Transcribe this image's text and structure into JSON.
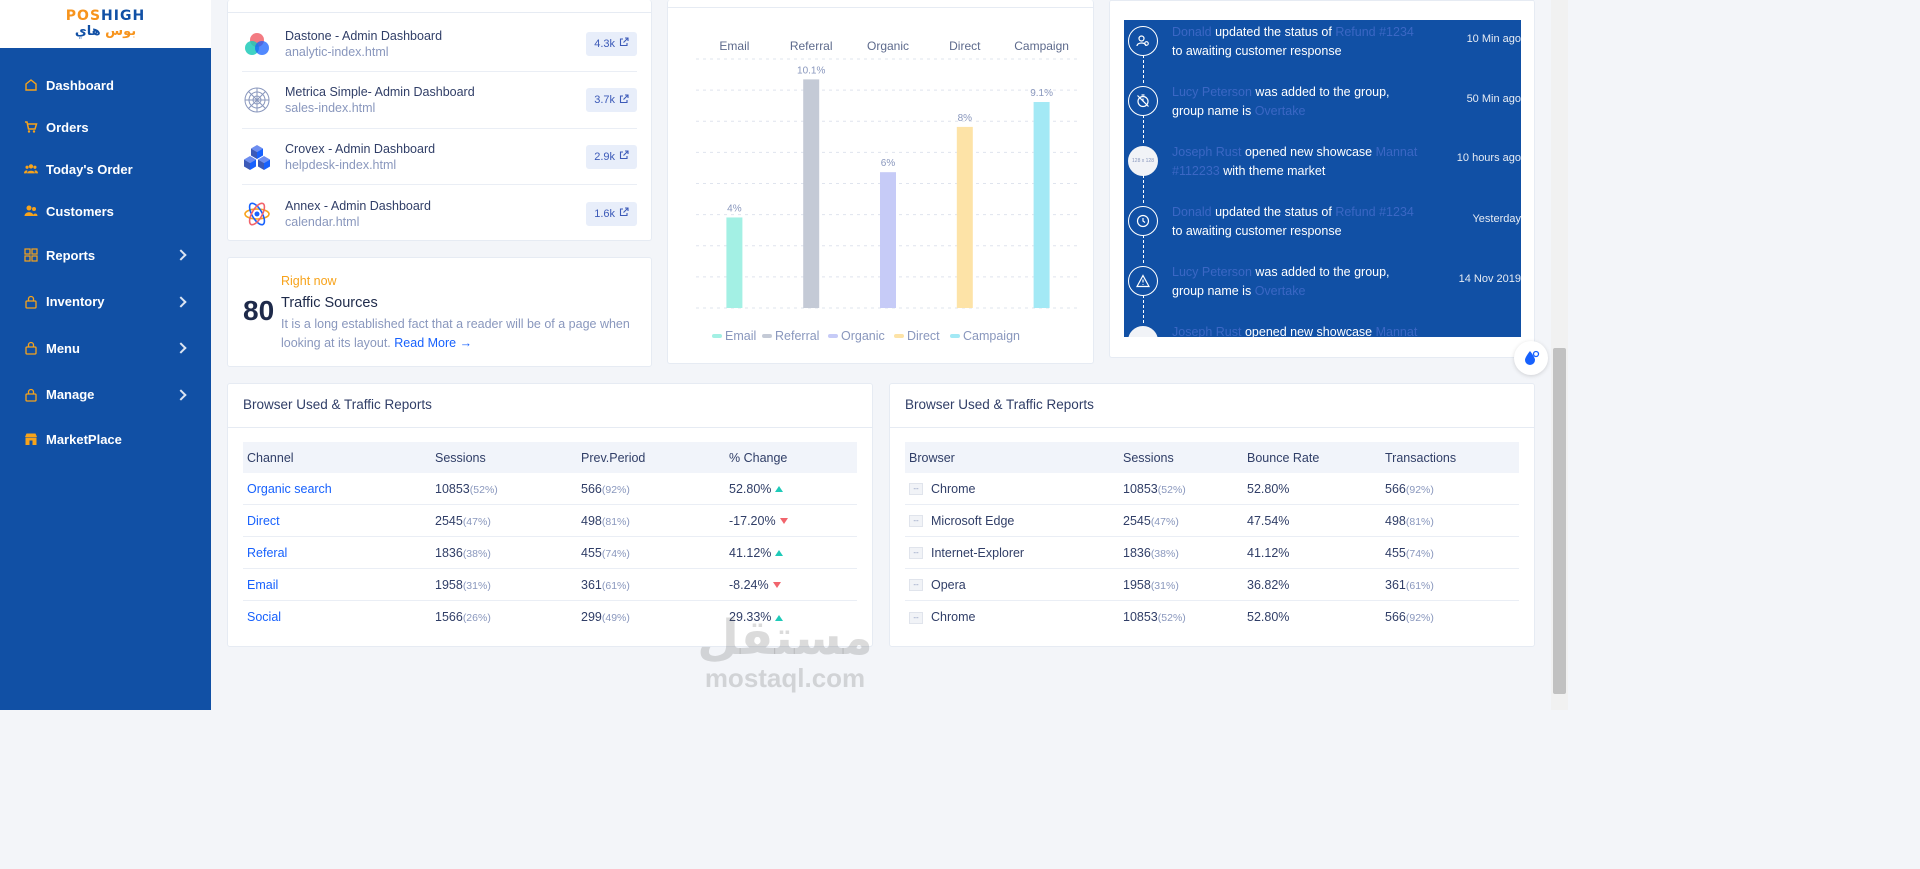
{
  "brand": {
    "logo_en_a": "POS",
    "logo_en_b": "HIGH",
    "logo_ar_a": "بوس ",
    "logo_ar_b": "هاي"
  },
  "sidebar": {
    "items": [
      {
        "label": "Dashboard",
        "icon": "home-icon",
        "chevron": false
      },
      {
        "label": "Orders",
        "icon": "cart-icon",
        "chevron": false
      },
      {
        "label": "Today's Order",
        "icon": "users-icon",
        "chevron": false
      },
      {
        "label": "Customers",
        "icon": "user-group-icon",
        "chevron": false
      },
      {
        "label": "Reports",
        "icon": "grid-icon",
        "chevron": true
      },
      {
        "label": "Inventory",
        "icon": "lock-icon",
        "chevron": true
      },
      {
        "label": "Menu",
        "icon": "lock-icon",
        "chevron": true
      },
      {
        "label": "Manage",
        "icon": "lock-icon",
        "chevron": true
      },
      {
        "label": "MarketPlace",
        "icon": "shop-icon",
        "chevron": false
      }
    ]
  },
  "projects": [
    {
      "name": "Dastone - Admin Dashboard",
      "file": "analytic-index.html",
      "count": "4.3k"
    },
    {
      "name": "Metrica Simple- Admin Dashboard",
      "file": "sales-index.html",
      "count": "3.7k"
    },
    {
      "name": "Crovex - Admin Dashboard",
      "file": "helpdesk-index.html",
      "count": "2.9k"
    },
    {
      "name": "Annex - Admin Dashboard",
      "file": "calendar.html",
      "count": "1.6k"
    }
  ],
  "traffic_card": {
    "number": "80",
    "kicker": "Right now",
    "title": "Traffic Sources",
    "description": "It is a long established fact that a reader will be of a page when looking at its layout.",
    "link": "Read More →"
  },
  "chart_data": {
    "type": "bar",
    "categories": [
      "Email",
      "Referral",
      "Organic",
      "Direct",
      "Campaign"
    ],
    "values": [
      4,
      10.1,
      6,
      8,
      9.1
    ],
    "data_labels": [
      "4%",
      "10.1%",
      "6%",
      "8%",
      "9.1%"
    ],
    "colors": [
      "#a3f0e4",
      "#c4cad6",
      "#c6cbf7",
      "#fde3a7",
      "#a3e9f5"
    ],
    "legend": [
      "Email",
      "Referral",
      "Organic",
      "Direct",
      "Campaign"
    ],
    "legend_position": "bottom",
    "xaxis_position": "top",
    "ylim": [
      0,
      11
    ],
    "grid": true
  },
  "activity": [
    {
      "name": "Donald",
      "action": " updated the status of ",
      "target": "Refund #1234",
      "rest": " to awaiting customer response",
      "time": "10 Min ago",
      "icon": "user-search-icon"
    },
    {
      "name": "Lucy Peterson",
      "action": " was added to the group, group name is ",
      "target": "Overtake",
      "rest": "",
      "time": "50 Min ago",
      "icon": "timer-off-icon"
    },
    {
      "name": "Joseph Rust",
      "action": " opened new showcase ",
      "target": "Mannat #112233",
      "rest": " with theme market",
      "time": "10 hours ago",
      "icon": "avatar-image",
      "img_text": "128 x 128"
    },
    {
      "name": "Donald",
      "action": " updated the status of ",
      "target": "Refund #1234",
      "rest": " to awaiting customer response",
      "time": "Yesterday",
      "icon": "clock-icon"
    },
    {
      "name": "Lucy Peterson",
      "action": " was added to the group, group name is ",
      "target": "Overtake",
      "rest": "",
      "time": "14 Nov 2019",
      "icon": "alert-triangle-icon"
    },
    {
      "name": "Joseph Rust",
      "action": " opened new showcase ",
      "target": "Mannat",
      "rest": "",
      "time": "",
      "icon": "avatar-image",
      "img_text": ""
    }
  ],
  "channel_table": {
    "title": "Browser Used & Traffic Reports",
    "headers": [
      "Channel",
      "Sessions",
      "Prev.Period",
      "% Change"
    ],
    "rows": [
      {
        "channel": "Organic search",
        "sessions": "10853",
        "sessions_pct": "(52%)",
        "prev": "566",
        "prev_pct": "(92%)",
        "change": "52.80%",
        "trend": "up"
      },
      {
        "channel": "Direct",
        "sessions": "2545",
        "sessions_pct": "(47%)",
        "prev": "498",
        "prev_pct": "(81%)",
        "change": "-17.20%",
        "trend": "down"
      },
      {
        "channel": "Referal",
        "sessions": "1836",
        "sessions_pct": "(38%)",
        "prev": "455",
        "prev_pct": "(74%)",
        "change": "41.12%",
        "trend": "up"
      },
      {
        "channel": "Email",
        "sessions": "1958",
        "sessions_pct": "(31%)",
        "prev": "361",
        "prev_pct": "(61%)",
        "change": "-8.24%",
        "trend": "down"
      },
      {
        "channel": "Social",
        "sessions": "1566",
        "sessions_pct": "(26%)",
        "prev": "299",
        "prev_pct": "(49%)",
        "change": "29.33%",
        "trend": "up"
      }
    ]
  },
  "browser_table": {
    "title": "Browser Used & Traffic Reports",
    "headers": [
      "Browser",
      "Sessions",
      "Bounce Rate",
      "Transactions"
    ],
    "rows": [
      {
        "browser": "Chrome",
        "sessions": "10853",
        "sessions_pct": "(52%)",
        "bounce": "52.80%",
        "trans": "566",
        "trans_pct": "(92%)"
      },
      {
        "browser": "Microsoft Edge",
        "sessions": "2545",
        "sessions_pct": "(47%)",
        "bounce": "47.54%",
        "trans": "498",
        "trans_pct": "(81%)"
      },
      {
        "browser": "Internet-Explorer",
        "sessions": "1836",
        "sessions_pct": "(38%)",
        "bounce": "41.12%",
        "trans": "455",
        "trans_pct": "(74%)"
      },
      {
        "browser": "Opera",
        "sessions": "1958",
        "sessions_pct": "(31%)",
        "bounce": "36.82%",
        "trans": "361",
        "trans_pct": "(61%)"
      },
      {
        "browser": "Chrome",
        "sessions": "10853",
        "sessions_pct": "(52%)",
        "bounce": "52.80%",
        "trans": "566",
        "trans_pct": "(92%)"
      }
    ]
  },
  "watermark": {
    "ar": "مستقل",
    "en": "mostaql.com"
  }
}
